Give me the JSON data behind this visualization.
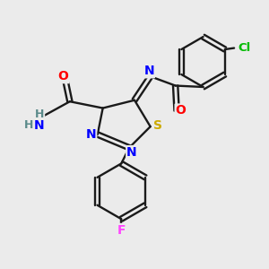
{
  "bg_color": "#ebebeb",
  "bond_color": "#1a1a1a",
  "atom_colors": {
    "N": "#0000ff",
    "O": "#ff0000",
    "S": "#ccaa00",
    "F": "#ff44ff",
    "Cl": "#00bb00",
    "C": "#1a1a1a",
    "H": "#5a8a8a"
  },
  "figsize": [
    3.0,
    3.0
  ],
  "dpi": 100
}
